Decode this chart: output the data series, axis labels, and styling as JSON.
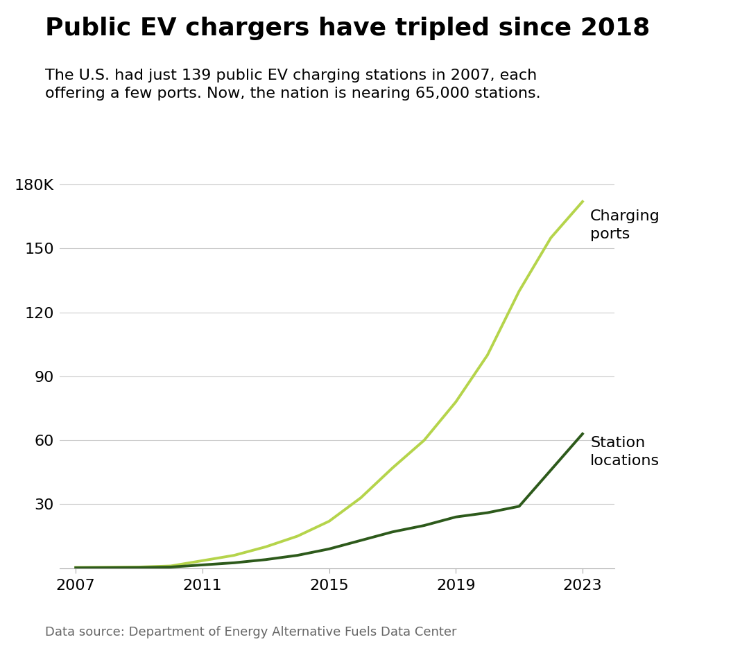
{
  "title": "Public EV chargers have tripled since 2018",
  "subtitle": "The U.S. had just 139 public EV charging stations in 2007, each\noffering a few ports. Now, the nation is nearing 65,000 stations.",
  "source": "Data source: Department of Energy Alternative Fuels Data Center",
  "years_ports": [
    2007,
    2008,
    2009,
    2010,
    2011,
    2012,
    2013,
    2014,
    2015,
    2016,
    2017,
    2018,
    2019,
    2020,
    2021,
    2022,
    2023
  ],
  "ports": [
    0.3,
    0.4,
    0.5,
    1.0,
    3.5,
    6,
    10,
    15,
    22,
    33,
    47,
    60,
    78,
    100,
    130,
    155,
    172
  ],
  "years_stations": [
    2007,
    2008,
    2009,
    2010,
    2011,
    2012,
    2013,
    2014,
    2015,
    2016,
    2017,
    2018,
    2019,
    2020,
    2021,
    2022,
    2023
  ],
  "stations": [
    0.14,
    0.18,
    0.25,
    0.5,
    1.5,
    2.5,
    4,
    6,
    9,
    13,
    17,
    20,
    24,
    26,
    29,
    46,
    63
  ],
  "color_ports": "#b5d44b",
  "color_stations": "#2d5a1b",
  "yticks": [
    0,
    30,
    60,
    90,
    120,
    150,
    180
  ],
  "ytick_labels": [
    "",
    "30",
    "60",
    "90",
    "120",
    "150",
    "180K"
  ],
  "xticks": [
    2007,
    2011,
    2015,
    2019,
    2023
  ],
  "xlim": [
    2006.5,
    2024.0
  ],
  "ylim": [
    0,
    190
  ],
  "background_color": "#ffffff",
  "label_ports": "Charging\nports",
  "label_stations": "Station\nlocations",
  "title_fontsize": 26,
  "subtitle_fontsize": 16,
  "source_fontsize": 13,
  "tick_fontsize": 16,
  "label_fontsize": 16,
  "line_width": 2.8
}
